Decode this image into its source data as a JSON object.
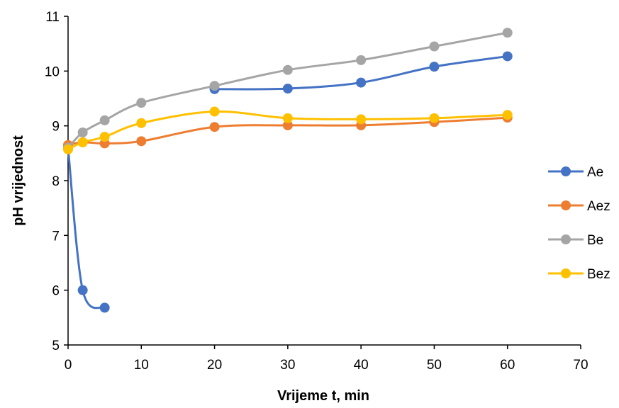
{
  "chart_data": {
    "type": "scatter",
    "title": "",
    "xlabel": "Vrijeme t, min",
    "ylabel": "pH vrijednost",
    "xlim": [
      0,
      70
    ],
    "ylim": [
      5,
      11
    ],
    "xticks": [
      0,
      10,
      20,
      30,
      40,
      50,
      60,
      70
    ],
    "yticks": [
      5,
      6,
      7,
      8,
      9,
      10,
      11
    ],
    "grid": false,
    "legend_position": "right",
    "smooth_lines": true,
    "series": [
      {
        "name": "Ae",
        "color": "#4472C4",
        "segments": [
          [
            [
              0,
              8.6
            ],
            [
              2,
              6.0
            ],
            [
              5,
              5.68
            ]
          ],
          [
            [
              20,
              9.67
            ],
            [
              30,
              9.68
            ],
            [
              40,
              9.79
            ],
            [
              50,
              10.08
            ],
            [
              60,
              10.27
            ]
          ]
        ]
      },
      {
        "name": "Aez",
        "color": "#ED7D31",
        "segments": [
          [
            [
              0,
              8.65
            ],
            [
              2,
              8.7
            ],
            [
              5,
              8.68
            ],
            [
              10,
              8.72
            ],
            [
              20,
              8.98
            ],
            [
              30,
              9.01
            ],
            [
              40,
              9.01
            ],
            [
              50,
              9.07
            ],
            [
              60,
              9.15
            ]
          ]
        ]
      },
      {
        "name": "Be",
        "color": "#A5A5A5",
        "segments": [
          [
            [
              0,
              8.6
            ],
            [
              2,
              8.88
            ],
            [
              5,
              9.1
            ],
            [
              10,
              9.42
            ],
            [
              20,
              9.73
            ],
            [
              30,
              10.02
            ],
            [
              40,
              10.2
            ],
            [
              50,
              10.45
            ],
            [
              60,
              10.7
            ]
          ]
        ]
      },
      {
        "name": "Bez",
        "color": "#FFC000",
        "segments": [
          [
            [
              0,
              8.57
            ],
            [
              2,
              8.7
            ],
            [
              5,
              8.8
            ],
            [
              10,
              9.05
            ],
            [
              20,
              9.26
            ],
            [
              30,
              9.14
            ],
            [
              40,
              9.12
            ],
            [
              50,
              9.14
            ],
            [
              60,
              9.2
            ]
          ]
        ]
      }
    ]
  }
}
